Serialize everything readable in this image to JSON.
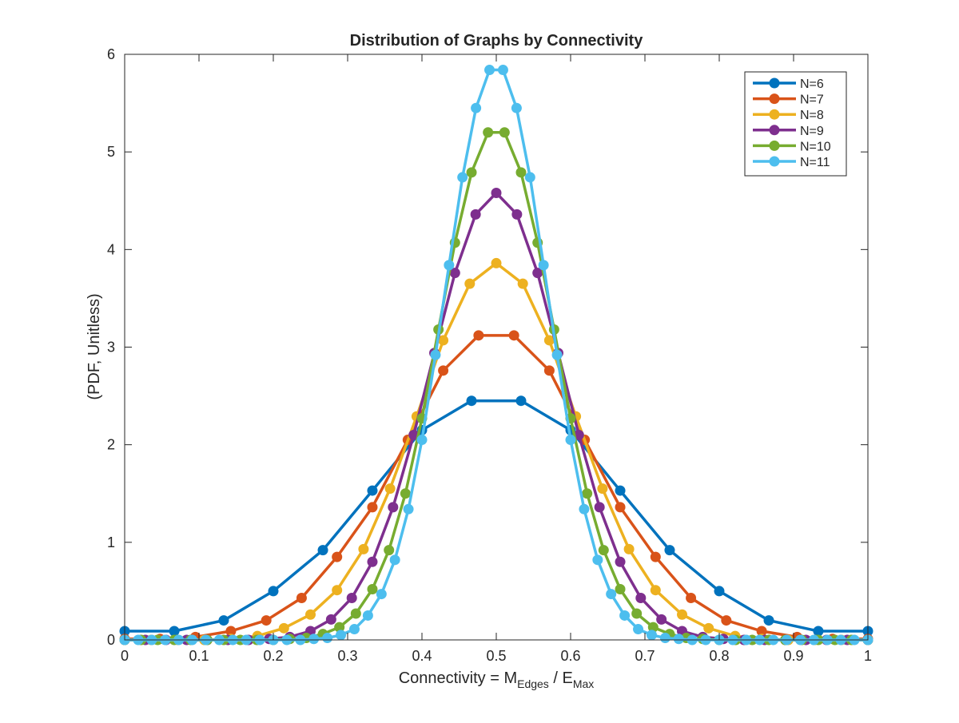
{
  "chart_data": {
    "type": "line",
    "title": "Distribution of Graphs by Connectivity",
    "xlabel": {
      "main": "Connectivity = M",
      "sub1": "Edges",
      "slash": " / E",
      "sub2": "Max"
    },
    "ylabel": "(PDF, Unitless)",
    "xlim": [
      0,
      1
    ],
    "ylim": [
      0,
      6
    ],
    "xticks": [
      "0",
      "0.1",
      "0.2",
      "0.3",
      "0.4",
      "0.5",
      "0.6",
      "0.7",
      "0.8",
      "0.9",
      "1"
    ],
    "yticks": [
      "0",
      "1",
      "2",
      "3",
      "4",
      "5",
      "6"
    ],
    "legend_position": "top-right",
    "series": [
      {
        "name": "N=6",
        "color": "#0072BD",
        "x": [
          0,
          0.0667,
          0.1333,
          0.2,
          0.2667,
          0.3333,
          0.4,
          0.4667,
          0.5333,
          0.6,
          0.6667,
          0.7333,
          0.8,
          0.8667,
          0.9333,
          1
        ],
        "y": [
          0.09,
          0.09,
          0.2,
          0.5,
          0.92,
          1.53,
          2.15,
          2.45,
          2.45,
          2.15,
          1.53,
          0.92,
          0.5,
          0.2,
          0.09,
          0.09
        ]
      },
      {
        "name": "N=7",
        "color": "#D95319",
        "x": [
          0,
          0.0476,
          0.0952,
          0.1429,
          0.1905,
          0.2381,
          0.2857,
          0.3333,
          0.381,
          0.4286,
          0.4762,
          0.5238,
          0.5714,
          0.619,
          0.6667,
          0.7143,
          0.7619,
          0.8095,
          0.8571,
          0.9048,
          0.9524,
          1
        ],
        "y": [
          0.01,
          0.01,
          0.03,
          0.09,
          0.2,
          0.43,
          0.85,
          1.36,
          2.05,
          2.76,
          3.12,
          3.12,
          2.76,
          2.05,
          1.36,
          0.85,
          0.43,
          0.2,
          0.09,
          0.03,
          0.01,
          0.01
        ]
      },
      {
        "name": "N=8",
        "color": "#EDB120",
        "x": [
          0,
          0.0357,
          0.0714,
          0.1071,
          0.1429,
          0.1786,
          0.2143,
          0.25,
          0.2857,
          0.3214,
          0.3571,
          0.3929,
          0.4286,
          0.4643,
          0.5,
          0.5357,
          0.5714,
          0.6071,
          0.6429,
          0.6786,
          0.7143,
          0.75,
          0.7857,
          0.8214,
          0.8571,
          0.8929,
          0.9286,
          0.9643,
          1
        ],
        "y": [
          0,
          0,
          0,
          0,
          0.01,
          0.04,
          0.12,
          0.26,
          0.51,
          0.93,
          1.55,
          2.29,
          3.07,
          3.65,
          3.86,
          3.65,
          3.07,
          2.29,
          1.55,
          0.93,
          0.51,
          0.26,
          0.12,
          0.04,
          0.01,
          0,
          0,
          0,
          0
        ]
      },
      {
        "name": "N=9",
        "color": "#7E2F8E",
        "x": [
          0,
          0.0278,
          0.0556,
          0.0833,
          0.1111,
          0.1389,
          0.1667,
          0.1944,
          0.2222,
          0.25,
          0.2778,
          0.3056,
          0.3333,
          0.3611,
          0.3889,
          0.4167,
          0.4444,
          0.4722,
          0.5,
          0.5278,
          0.5556,
          0.5833,
          0.6111,
          0.6389,
          0.6667,
          0.6944,
          0.7222,
          0.75,
          0.7778,
          0.8056,
          0.8333,
          0.8611,
          0.8889,
          0.9167,
          0.9444,
          0.9722,
          1
        ],
        "y": [
          0,
          0,
          0,
          0,
          0,
          0,
          0,
          0.01,
          0.03,
          0.09,
          0.21,
          0.43,
          0.8,
          1.36,
          2.1,
          2.94,
          3.76,
          4.36,
          4.58,
          4.36,
          3.76,
          2.94,
          2.1,
          1.36,
          0.8,
          0.43,
          0.21,
          0.09,
          0.03,
          0.01,
          0,
          0,
          0,
          0,
          0,
          0,
          0
        ]
      },
      {
        "name": "N=10",
        "color": "#77AC30",
        "x": [
          0,
          0.0222,
          0.0444,
          0.0667,
          0.0889,
          0.1111,
          0.1333,
          0.1556,
          0.1778,
          0.2,
          0.2222,
          0.2444,
          0.2667,
          0.2889,
          0.3111,
          0.3333,
          0.3556,
          0.3778,
          0.4,
          0.4222,
          0.4444,
          0.4667,
          0.4889,
          0.5111,
          0.5333,
          0.5556,
          0.5778,
          0.6,
          0.6222,
          0.6444,
          0.6667,
          0.6889,
          0.7111,
          0.7333,
          0.7556,
          0.7778,
          0.8,
          0.8222,
          0.8444,
          0.8667,
          0.8889,
          0.9111,
          0.9333,
          0.9556,
          0.9778,
          1
        ],
        "y": [
          0,
          0,
          0,
          0,
          0,
          0,
          0,
          0,
          0,
          0,
          0.01,
          0.02,
          0.06,
          0.13,
          0.27,
          0.52,
          0.92,
          1.5,
          2.27,
          3.18,
          4.07,
          4.79,
          5.2,
          5.2,
          4.79,
          4.07,
          3.18,
          2.27,
          1.5,
          0.92,
          0.52,
          0.27,
          0.13,
          0.06,
          0.02,
          0.01,
          0,
          0,
          0,
          0,
          0,
          0,
          0,
          0,
          0,
          0
        ]
      },
      {
        "name": "N=11",
        "color": "#4DBEEE",
        "x": [
          0,
          0.0182,
          0.0364,
          0.0545,
          0.0727,
          0.0909,
          0.1091,
          0.1273,
          0.1455,
          0.1636,
          0.1818,
          0.2,
          0.2182,
          0.2364,
          0.2545,
          0.2727,
          0.2909,
          0.3091,
          0.3273,
          0.3455,
          0.3636,
          0.3818,
          0.4,
          0.4182,
          0.4364,
          0.4545,
          0.4727,
          0.4909,
          0.5091,
          0.5273,
          0.5455,
          0.5636,
          0.5818,
          0.6,
          0.6182,
          0.6364,
          0.6545,
          0.6727,
          0.6909,
          0.7091,
          0.7273,
          0.7455,
          0.7636,
          0.7818,
          0.8,
          0.8182,
          0.8364,
          0.8545,
          0.8727,
          0.8909,
          0.9091,
          0.9273,
          0.9455,
          0.9636,
          0.9818,
          1
        ],
        "y": [
          0,
          0,
          0,
          0,
          0,
          0,
          0,
          0,
          0,
          0,
          0,
          0,
          0,
          0,
          0.01,
          0.02,
          0.05,
          0.11,
          0.25,
          0.47,
          0.82,
          1.34,
          2.05,
          2.92,
          3.84,
          4.74,
          5.45,
          5.84,
          5.84,
          5.45,
          4.74,
          3.84,
          2.92,
          2.05,
          1.34,
          0.82,
          0.47,
          0.25,
          0.11,
          0.05,
          0.02,
          0.01,
          0,
          0,
          0,
          0,
          0,
          0,
          0,
          0,
          0,
          0,
          0,
          0,
          0,
          0
        ]
      }
    ]
  }
}
